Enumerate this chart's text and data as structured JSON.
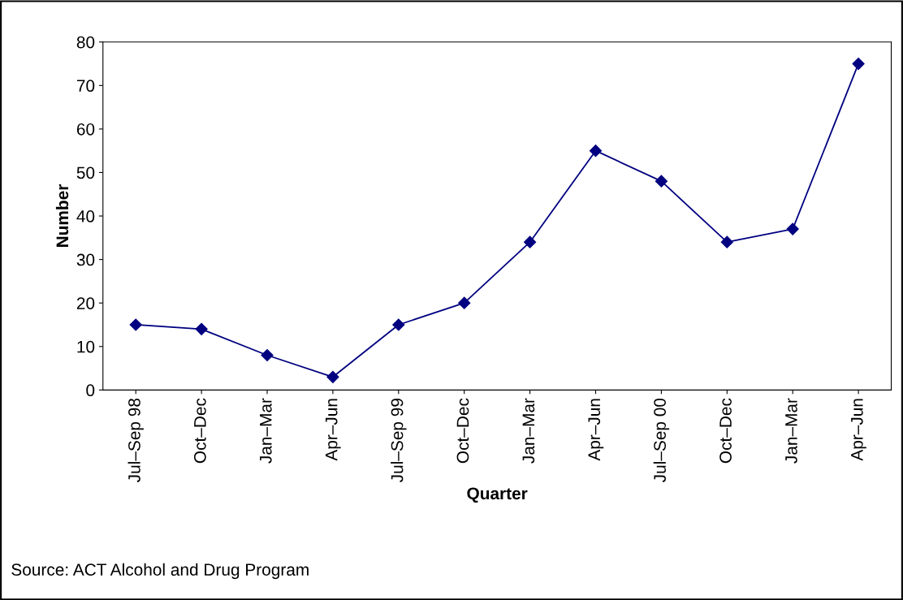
{
  "chart_data": {
    "type": "line",
    "xlabel": "Quarter",
    "ylabel": "Number",
    "categories": [
      "Jul–Sep 98",
      "Oct–Dec",
      "Jan–Mar",
      "Apr–Jun",
      "Jul–Sep 99",
      "Oct–Dec",
      "Jan–Mar",
      "Apr–Jun",
      "Jul–Sep 00",
      "Oct–Dec",
      "Jan–Mar",
      "Apr–Jun"
    ],
    "series": [
      {
        "color": "#000080",
        "values": [
          15,
          14,
          8,
          3,
          15,
          20,
          34,
          55,
          48,
          34,
          37,
          75
        ]
      }
    ],
    "ylim": [
      0,
      80
    ],
    "yticks": [
      0,
      10,
      20,
      30,
      40,
      50,
      60,
      70,
      80
    ],
    "marker": "diamond",
    "line_style": "solid",
    "grid": false,
    "annotations": [
      "Source: ACT Alcohol and Drug Program"
    ]
  }
}
